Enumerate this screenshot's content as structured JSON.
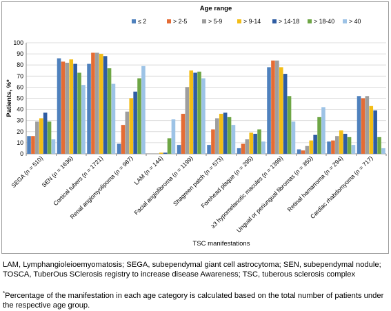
{
  "chart_data": {
    "type": "bar",
    "legend_title": "Age range",
    "legend_position": "top",
    "xlabel": "TSC manifestations",
    "ylabel": "Patients, %*",
    "ylim": [
      0,
      100
    ],
    "yticks": [
      0,
      10,
      20,
      30,
      40,
      50,
      60,
      70,
      80,
      90,
      100
    ],
    "grid": "horizontal",
    "categories": [
      "SEGA (n = 510)",
      "SEN (n = 1636)",
      "Cortical tubers (n = 1721)",
      "Renal angiomyolipoma (n = 987)",
      "LAM (n = 144)",
      "Facial angiofibroma (n = 1199)",
      "Shagreen patch (n = 573)",
      "Forehead plaque (n = 295)",
      "≥3 hypomelanotic macules (n = 1399)",
      "Ungual or periungual fibromas (n = 350)",
      "Retinal hamartoma (n = 294)",
      "Cardiac rhabdomyoma (n = 717)"
    ],
    "series": [
      {
        "name": "≤ 2",
        "color": "#4f81bd",
        "values": [
          16,
          86,
          81,
          9,
          0,
          8,
          8,
          5,
          78,
          4,
          11,
          52
        ]
      },
      {
        "name": "> 2-5",
        "color": "#e46c35",
        "values": [
          16,
          83,
          91,
          26,
          0,
          36,
          22,
          9,
          84,
          3,
          12,
          50
        ]
      },
      {
        "name": "> 5-9",
        "color": "#9e9e9e",
        "values": [
          29,
          82,
          91,
          38,
          0,
          60,
          32,
          13,
          84,
          7,
          16,
          52
        ]
      },
      {
        "name": "> 9-14",
        "color": "#f3bd16",
        "values": [
          32,
          85,
          90,
          50,
          1,
          75,
          36,
          19,
          78,
          12,
          21,
          43
        ]
      },
      {
        "name": "> 14-18",
        "color": "#2f5da3",
        "values": [
          37,
          81,
          88,
          56,
          1,
          73,
          37,
          18,
          72,
          17,
          18,
          39
        ]
      },
      {
        "name": "> 18-40",
        "color": "#6ea645",
        "values": [
          29,
          73,
          77,
          68,
          14,
          74,
          33,
          22,
          52,
          33,
          15,
          15
        ]
      },
      {
        "name": "> 40",
        "color": "#9dc3e6",
        "values": [
          13,
          62,
          63,
          79,
          31,
          68,
          26,
          11,
          29,
          42,
          8,
          5
        ]
      }
    ]
  },
  "caption": {
    "abbreviations": "LAM, Lymphangioleioemyomatosis; SEGA, subependymal giant cell astrocytoma; SEN, subependymal nodule; TOSCA, TuberOus SClerosis registry to increase disease Awareness; TSC, tuberous sclerosis complex",
    "note_marker": "*",
    "note": "Percentage of the manifestation in each age category is calculated based on the total number of patients under the respective age group."
  }
}
